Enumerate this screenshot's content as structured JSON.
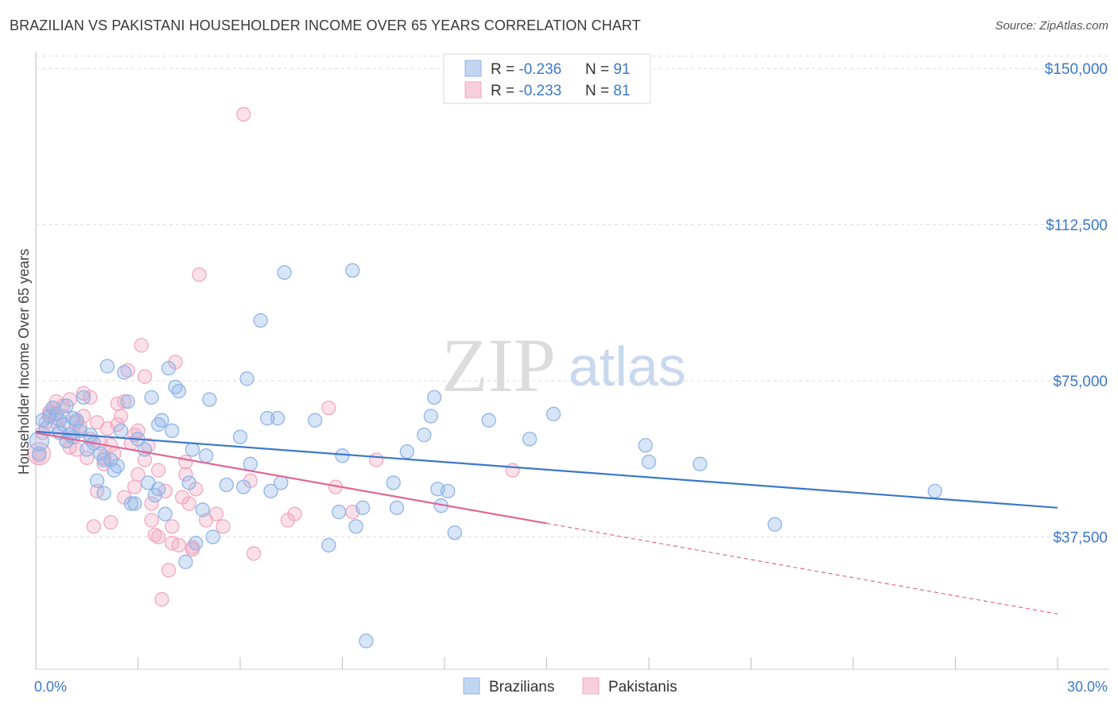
{
  "title": "BRAZILIAN VS PAKISTANI HOUSEHOLDER INCOME OVER 65 YEARS CORRELATION CHART",
  "source": "Source: ZipAtlas.com",
  "watermark": {
    "zip": "ZIP",
    "atlas": "atlas"
  },
  "legend_top": [
    {
      "r_label": "R = ",
      "r_value": "-0.236",
      "n_label": "N = ",
      "n_value": "91",
      "color": "#8fb4e8"
    },
    {
      "r_label": "R = ",
      "r_value": "-0.233",
      "n_label": "N = ",
      "n_value": "81",
      "color": "#f2a8c0"
    }
  ],
  "legend_bottom": [
    {
      "label": "Brazilians",
      "color": "#8fb4e8"
    },
    {
      "label": "Pakistanis",
      "color": "#f2a8c0"
    }
  ],
  "chart_data": {
    "type": "scatter",
    "title": "BRAZILIAN VS PAKISTANI HOUSEHOLDER INCOME OVER 65 YEARS CORRELATION CHART",
    "xlabel": "",
    "ylabel": "Householder Income Over 65 years",
    "xlim": [
      0,
      30
    ],
    "ylim": [
      8000,
      155000
    ],
    "x_tick_labels": [
      "0.0%",
      "30.0%"
    ],
    "y_ticks": [
      37500,
      75000,
      112500,
      150000
    ],
    "y_tick_labels": [
      "$37,500",
      "$75,000",
      "$112,500",
      "$150,000"
    ],
    "grid": true,
    "series": [
      {
        "name": "Brazilians",
        "color": "#8fb4e8",
        "line_color": "#3a78cc",
        "trend": {
          "x": [
            0,
            30
          ],
          "y": [
            62800,
            44500
          ],
          "dashed_from": null
        },
        "points": [
          [
            0.1,
            57500
          ],
          [
            0.2,
            65500
          ],
          [
            0.3,
            63500
          ],
          [
            0.4,
            66500
          ],
          [
            0.5,
            68500
          ],
          [
            0.6,
            67000
          ],
          [
            0.7,
            62500
          ],
          [
            0.8,
            64500
          ],
          [
            0.9,
            60500
          ],
          [
            1.0,
            62000
          ],
          [
            1.1,
            66000
          ],
          [
            1.2,
            65500
          ],
          [
            1.3,
            63000
          ],
          [
            1.4,
            71000
          ],
          [
            1.5,
            58500
          ],
          [
            1.6,
            62000
          ],
          [
            1.7,
            60000
          ],
          [
            1.8,
            51000
          ],
          [
            1.9,
            57500
          ],
          [
            2.0,
            48000
          ],
          [
            2.1,
            78500
          ],
          [
            2.2,
            56000
          ],
          [
            2.3,
            53500
          ],
          [
            2.4,
            54500
          ],
          [
            2.5,
            63000
          ],
          [
            2.6,
            77000
          ],
          [
            2.7,
            70000
          ],
          [
            2.8,
            45500
          ],
          [
            2.9,
            45500
          ],
          [
            3.0,
            61000
          ],
          [
            3.2,
            58500
          ],
          [
            3.3,
            50500
          ],
          [
            3.4,
            71000
          ],
          [
            3.5,
            47500
          ],
          [
            3.6,
            64500
          ],
          [
            3.7,
            65500
          ],
          [
            3.8,
            43000
          ],
          [
            3.9,
            78000
          ],
          [
            4.0,
            63000
          ],
          [
            4.1,
            73500
          ],
          [
            4.2,
            72500
          ],
          [
            4.4,
            31500
          ],
          [
            4.5,
            50500
          ],
          [
            4.6,
            58500
          ],
          [
            4.7,
            36000
          ],
          [
            4.9,
            44000
          ],
          [
            5.0,
            57000
          ],
          [
            5.1,
            70500
          ],
          [
            5.2,
            37500
          ],
          [
            6.0,
            61500
          ],
          [
            6.1,
            49500
          ],
          [
            6.2,
            75500
          ],
          [
            6.3,
            55000
          ],
          [
            6.6,
            89500
          ],
          [
            6.8,
            66000
          ],
          [
            6.9,
            48500
          ],
          [
            7.1,
            66000
          ],
          [
            7.2,
            50500
          ],
          [
            7.3,
            101000
          ],
          [
            8.2,
            65500
          ],
          [
            8.6,
            35500
          ],
          [
            8.9,
            43500
          ],
          [
            9.0,
            57000
          ],
          [
            9.3,
            101500
          ],
          [
            9.4,
            40000
          ],
          [
            9.6,
            44500
          ],
          [
            10.5,
            50500
          ],
          [
            10.6,
            44500
          ],
          [
            10.9,
            58000
          ],
          [
            11.4,
            62000
          ],
          [
            11.6,
            66500
          ],
          [
            11.7,
            71000
          ],
          [
            11.8,
            49000
          ],
          [
            11.9,
            45000
          ],
          [
            12.1,
            48500
          ],
          [
            12.3,
            38500
          ],
          [
            13.3,
            65500
          ],
          [
            14.5,
            61000
          ],
          [
            15.2,
            67000
          ],
          [
            17.9,
            59500
          ],
          [
            18.0,
            55500
          ],
          [
            19.5,
            55000
          ],
          [
            21.7,
            40500
          ],
          [
            26.4,
            48500
          ],
          [
            9.7,
            12500
          ],
          [
            2.0,
            56000
          ],
          [
            3.6,
            49000
          ],
          [
            5.6,
            50000
          ],
          [
            0.7,
            65500
          ],
          [
            1.1,
            61500
          ],
          [
            0.9,
            69000
          ]
        ]
      },
      {
        "name": "Pakistanis",
        "color": "#f2a8c0",
        "line_color": "#e06692",
        "trend": {
          "x": [
            0,
            30
          ],
          "y": [
            62500,
            19000
          ],
          "solid_until": 15.0
        },
        "points": [
          [
            0.1,
            57000
          ],
          [
            0.2,
            62500
          ],
          [
            0.3,
            65000
          ],
          [
            0.4,
            67500
          ],
          [
            0.5,
            68500
          ],
          [
            0.6,
            66000
          ],
          [
            0.7,
            63000
          ],
          [
            0.8,
            69000
          ],
          [
            0.9,
            60500
          ],
          [
            1.0,
            70500
          ],
          [
            1.1,
            62500
          ],
          [
            1.2,
            58500
          ],
          [
            1.3,
            64000
          ],
          [
            1.4,
            66500
          ],
          [
            1.5,
            56500
          ],
          [
            1.6,
            61000
          ],
          [
            1.7,
            40000
          ],
          [
            1.8,
            48500
          ],
          [
            1.9,
            60000
          ],
          [
            2.0,
            55000
          ],
          [
            2.1,
            63500
          ],
          [
            2.2,
            59500
          ],
          [
            2.3,
            57500
          ],
          [
            2.4,
            69500
          ],
          [
            2.5,
            66500
          ],
          [
            2.6,
            47000
          ],
          [
            2.7,
            77500
          ],
          [
            2.8,
            60000
          ],
          [
            2.9,
            62000
          ],
          [
            3.0,
            52500
          ],
          [
            3.1,
            83500
          ],
          [
            3.2,
            56000
          ],
          [
            3.3,
            59500
          ],
          [
            3.4,
            41500
          ],
          [
            3.5,
            38000
          ],
          [
            3.6,
            53500
          ],
          [
            3.7,
            22500
          ],
          [
            3.8,
            48500
          ],
          [
            3.9,
            29500
          ],
          [
            4.0,
            36000
          ],
          [
            4.1,
            79500
          ],
          [
            4.2,
            35500
          ],
          [
            4.3,
            47000
          ],
          [
            4.4,
            55500
          ],
          [
            4.5,
            45500
          ],
          [
            4.6,
            35000
          ],
          [
            4.7,
            49000
          ],
          [
            4.8,
            100500
          ],
          [
            5.0,
            41500
          ],
          [
            5.3,
            43000
          ],
          [
            6.1,
            139000
          ],
          [
            6.3,
            51000
          ],
          [
            6.4,
            33500
          ],
          [
            7.4,
            41500
          ],
          [
            7.6,
            43000
          ],
          [
            8.6,
            68500
          ],
          [
            8.8,
            49500
          ],
          [
            9.3,
            43500
          ],
          [
            10.0,
            56000
          ],
          [
            14.0,
            53500
          ],
          [
            0.4,
            67000
          ],
          [
            0.6,
            70000
          ],
          [
            1.2,
            65000
          ],
          [
            1.4,
            72000
          ],
          [
            1.6,
            71000
          ],
          [
            2.0,
            56500
          ],
          [
            2.4,
            64500
          ],
          [
            3.2,
            76000
          ],
          [
            3.6,
            37500
          ],
          [
            4.6,
            34500
          ],
          [
            1.8,
            65000
          ],
          [
            2.2,
            41000
          ],
          [
            2.6,
            70000
          ],
          [
            3.0,
            63000
          ],
          [
            3.4,
            45500
          ],
          [
            4.0,
            40000
          ],
          [
            4.4,
            52500
          ],
          [
            1.0,
            59000
          ],
          [
            0.8,
            66500
          ],
          [
            2.9,
            49500
          ],
          [
            5.5,
            40000
          ]
        ]
      }
    ]
  }
}
